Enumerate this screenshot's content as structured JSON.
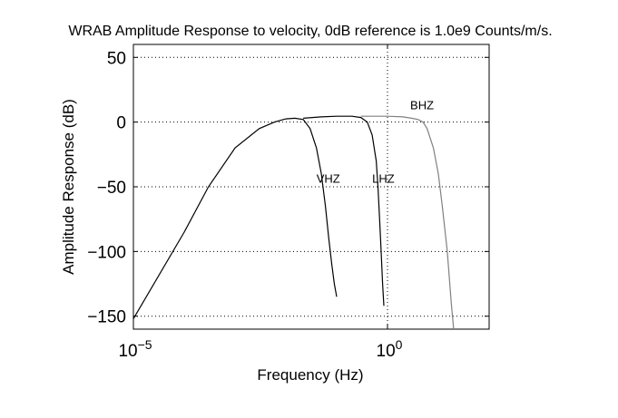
{
  "chart_data": {
    "type": "line",
    "title": "WRAB Amplitude Response to velocity, 0dB reference is 1.0e9 Counts/m/s.",
    "xlabel": "Frequency (Hz)",
    "ylabel": "Amplitude Response (dB)",
    "x_scale": "log",
    "xlim": [
      1e-05,
      100
    ],
    "ylim": [
      -160,
      60
    ],
    "x_ticks": [
      {
        "value": 1e-05,
        "base": "10",
        "exponent": "−5"
      },
      {
        "value": 1,
        "base": "10",
        "exponent": "0"
      }
    ],
    "y_ticks": [
      {
        "value": 50,
        "label": "50"
      },
      {
        "value": 0,
        "label": "0"
      },
      {
        "value": -50,
        "label": "−50"
      },
      {
        "value": -100,
        "label": "−100"
      },
      {
        "value": -150,
        "label": "−150"
      }
    ],
    "grid": true,
    "series": [
      {
        "name": "VHZ",
        "color": "#000000",
        "x": [
          1e-05,
          0.0001,
          0.0003,
          0.001,
          0.003,
          0.006,
          0.01,
          0.015,
          0.022,
          0.03,
          0.04,
          0.05,
          0.06,
          0.07,
          0.08,
          0.09,
          0.1
        ],
        "y": [
          -152,
          -85,
          -50,
          -20,
          -5,
          0,
          2.5,
          3,
          2,
          -5,
          -20,
          -40,
          -65,
          -90,
          -110,
          -125,
          -135
        ]
      },
      {
        "name": "LHZ",
        "color": "#000000",
        "x": [
          0.022,
          0.05,
          0.1,
          0.2,
          0.3,
          0.4,
          0.5,
          0.6,
          0.65,
          0.7,
          0.75,
          0.8,
          0.85
        ],
        "y": [
          3,
          4,
          4.5,
          4.5,
          3.5,
          0,
          -10,
          -30,
          -50,
          -75,
          -100,
          -125,
          -142
        ]
      },
      {
        "name": "BHZ",
        "color": "#808080",
        "x": [
          0.3,
          1,
          2,
          3,
          4,
          5,
          6,
          8,
          10,
          12,
          15,
          18,
          20
        ],
        "y": [
          4.5,
          4.5,
          4,
          3,
          2,
          0,
          -5,
          -20,
          -40,
          -65,
          -100,
          -140,
          -160
        ]
      }
    ]
  }
}
